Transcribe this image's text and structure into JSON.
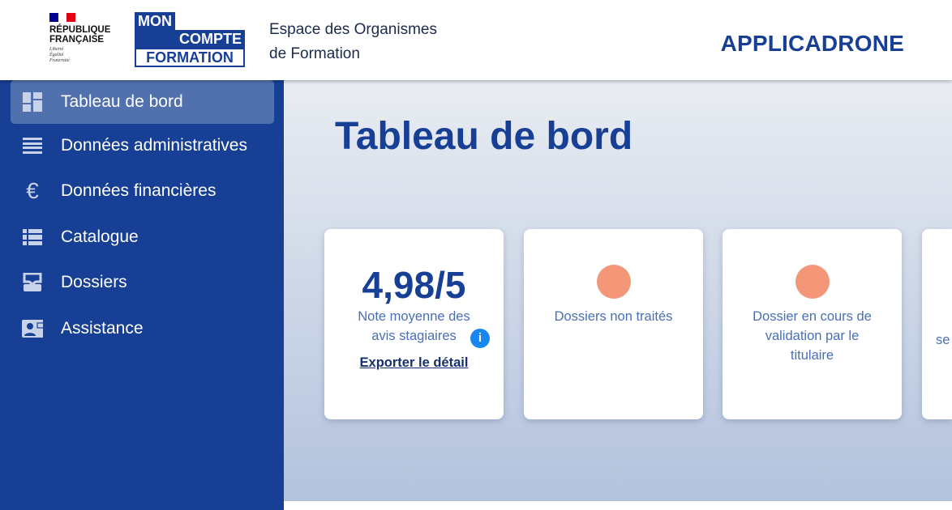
{
  "header": {
    "republique": "RÉPUBLIQUE FRANÇAISE",
    "motto": [
      "Liberté",
      "Égalité",
      "Fraternité"
    ],
    "logo": [
      "MON",
      "COMPTE",
      "FORMATION"
    ],
    "space_title": [
      "Espace des Organismes",
      "de Formation"
    ],
    "organization": "APPLICADRONE"
  },
  "sidebar": {
    "items": [
      {
        "label": "Tableau de bord",
        "icon": "dashboard-icon",
        "active": true
      },
      {
        "label": "Données administratives",
        "icon": "list-icon"
      },
      {
        "label": "Données financières",
        "icon": "euro-icon"
      },
      {
        "label": "Catalogue",
        "icon": "catalog-icon"
      },
      {
        "label": "Dossiers",
        "icon": "inbox-icon"
      },
      {
        "label": "Assistance",
        "icon": "contact-card-icon"
      }
    ]
  },
  "main": {
    "title": "Tableau de bord",
    "cards": [
      {
        "value": "4,98/5",
        "label": "Note moyenne des avis stagiaires",
        "link": "Exporter le détail",
        "info": "i"
      },
      {
        "label": "Dossiers non traités"
      },
      {
        "label": "Dossier en cours de validation par le titulaire"
      },
      {
        "label": "se"
      }
    ]
  },
  "colors": {
    "primary": "#173f96",
    "loading": "#f49779",
    "info": "#1a86f0"
  }
}
